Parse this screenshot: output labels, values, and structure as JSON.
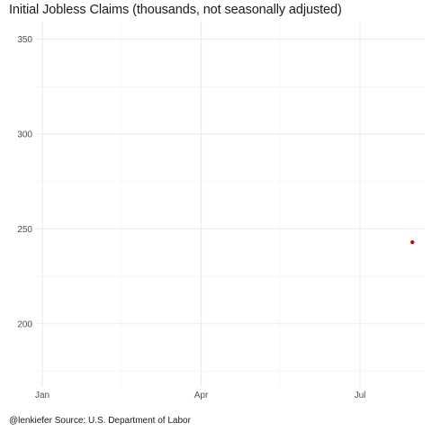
{
  "chart_data": {
    "type": "scatter",
    "title": "Initial Jobless Claims (thousands, not seasonally adjusted)",
    "xlabel": "",
    "ylabel": "",
    "x_axis": {
      "type": "date",
      "range": [
        "2020-01-01",
        "2020-07-31"
      ],
      "ticks": [
        {
          "value": "2020-01-01",
          "label": "Jan"
        },
        {
          "value": "2020-04-01",
          "label": "Apr"
        },
        {
          "value": "2020-07-01",
          "label": "Jul"
        }
      ],
      "minor_ticks": [
        "2020-02-15",
        "2020-05-16",
        "2020-08-15"
      ]
    },
    "y_axis": {
      "range": [
        170,
        355
      ],
      "ticks": [
        200,
        250,
        300,
        350
      ],
      "minor_ticks": [
        175,
        225,
        275,
        325
      ]
    },
    "grid": true,
    "legend": "none",
    "points": [
      {
        "x": "2020-07-31",
        "y": 243,
        "color": "#cc0000"
      }
    ],
    "caption": "@lenkiefer Source: U.S. Department of Labor"
  }
}
